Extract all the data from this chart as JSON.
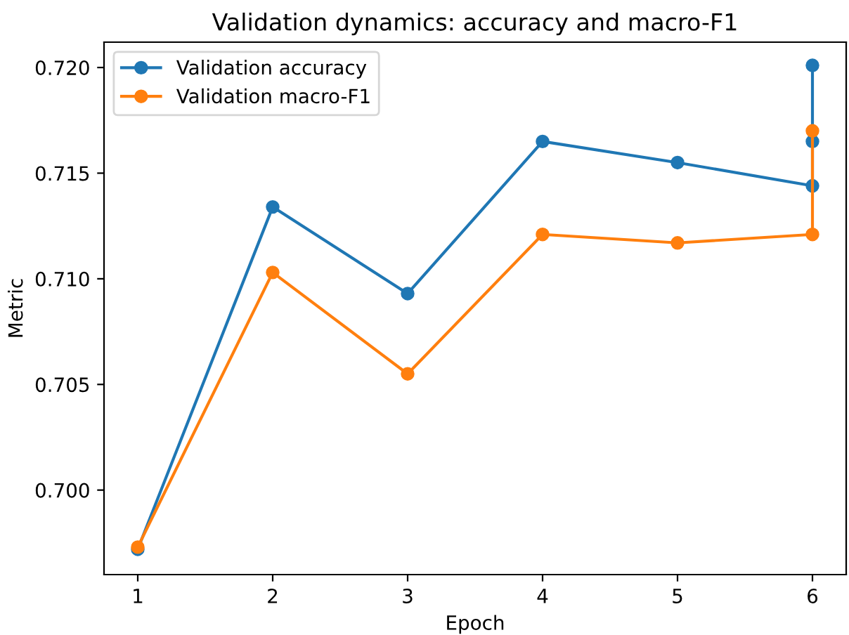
{
  "chart_data": {
    "type": "line",
    "title": "Validation dynamics: accuracy and macro-F1",
    "xlabel": "Epoch",
    "ylabel": "Metric",
    "series": [
      {
        "name": "Validation accuracy",
        "color": "#1f77b4",
        "x": [
          1,
          2,
          3,
          4,
          5,
          6,
          6,
          6
        ],
        "values": [
          0.6972,
          0.7134,
          0.7093,
          0.7165,
          0.7155,
          0.7144,
          0.7165,
          0.7201
        ]
      },
      {
        "name": "Validation macro-F1",
        "color": "#ff7f0e",
        "x": [
          1,
          2,
          3,
          4,
          5,
          6,
          6
        ],
        "values": [
          0.6973,
          0.7103,
          0.7055,
          0.7121,
          0.7117,
          0.7121,
          0.717
        ]
      }
    ],
    "xlim": [
      0.75,
      6.25
    ],
    "xticks": [
      1,
      2,
      3,
      4,
      5,
      6
    ],
    "ylim": [
      0.696,
      0.7212
    ],
    "yticks": [
      {
        "value": 0.7,
        "label": "0.700"
      },
      {
        "value": 0.705,
        "label": "0.705"
      },
      {
        "value": 0.71,
        "label": "0.710"
      },
      {
        "value": 0.715,
        "label": "0.715"
      },
      {
        "value": 0.72,
        "label": "0.720"
      }
    ],
    "marker": "circle",
    "line_style": "solid",
    "legend": "top left",
    "grid": false
  }
}
